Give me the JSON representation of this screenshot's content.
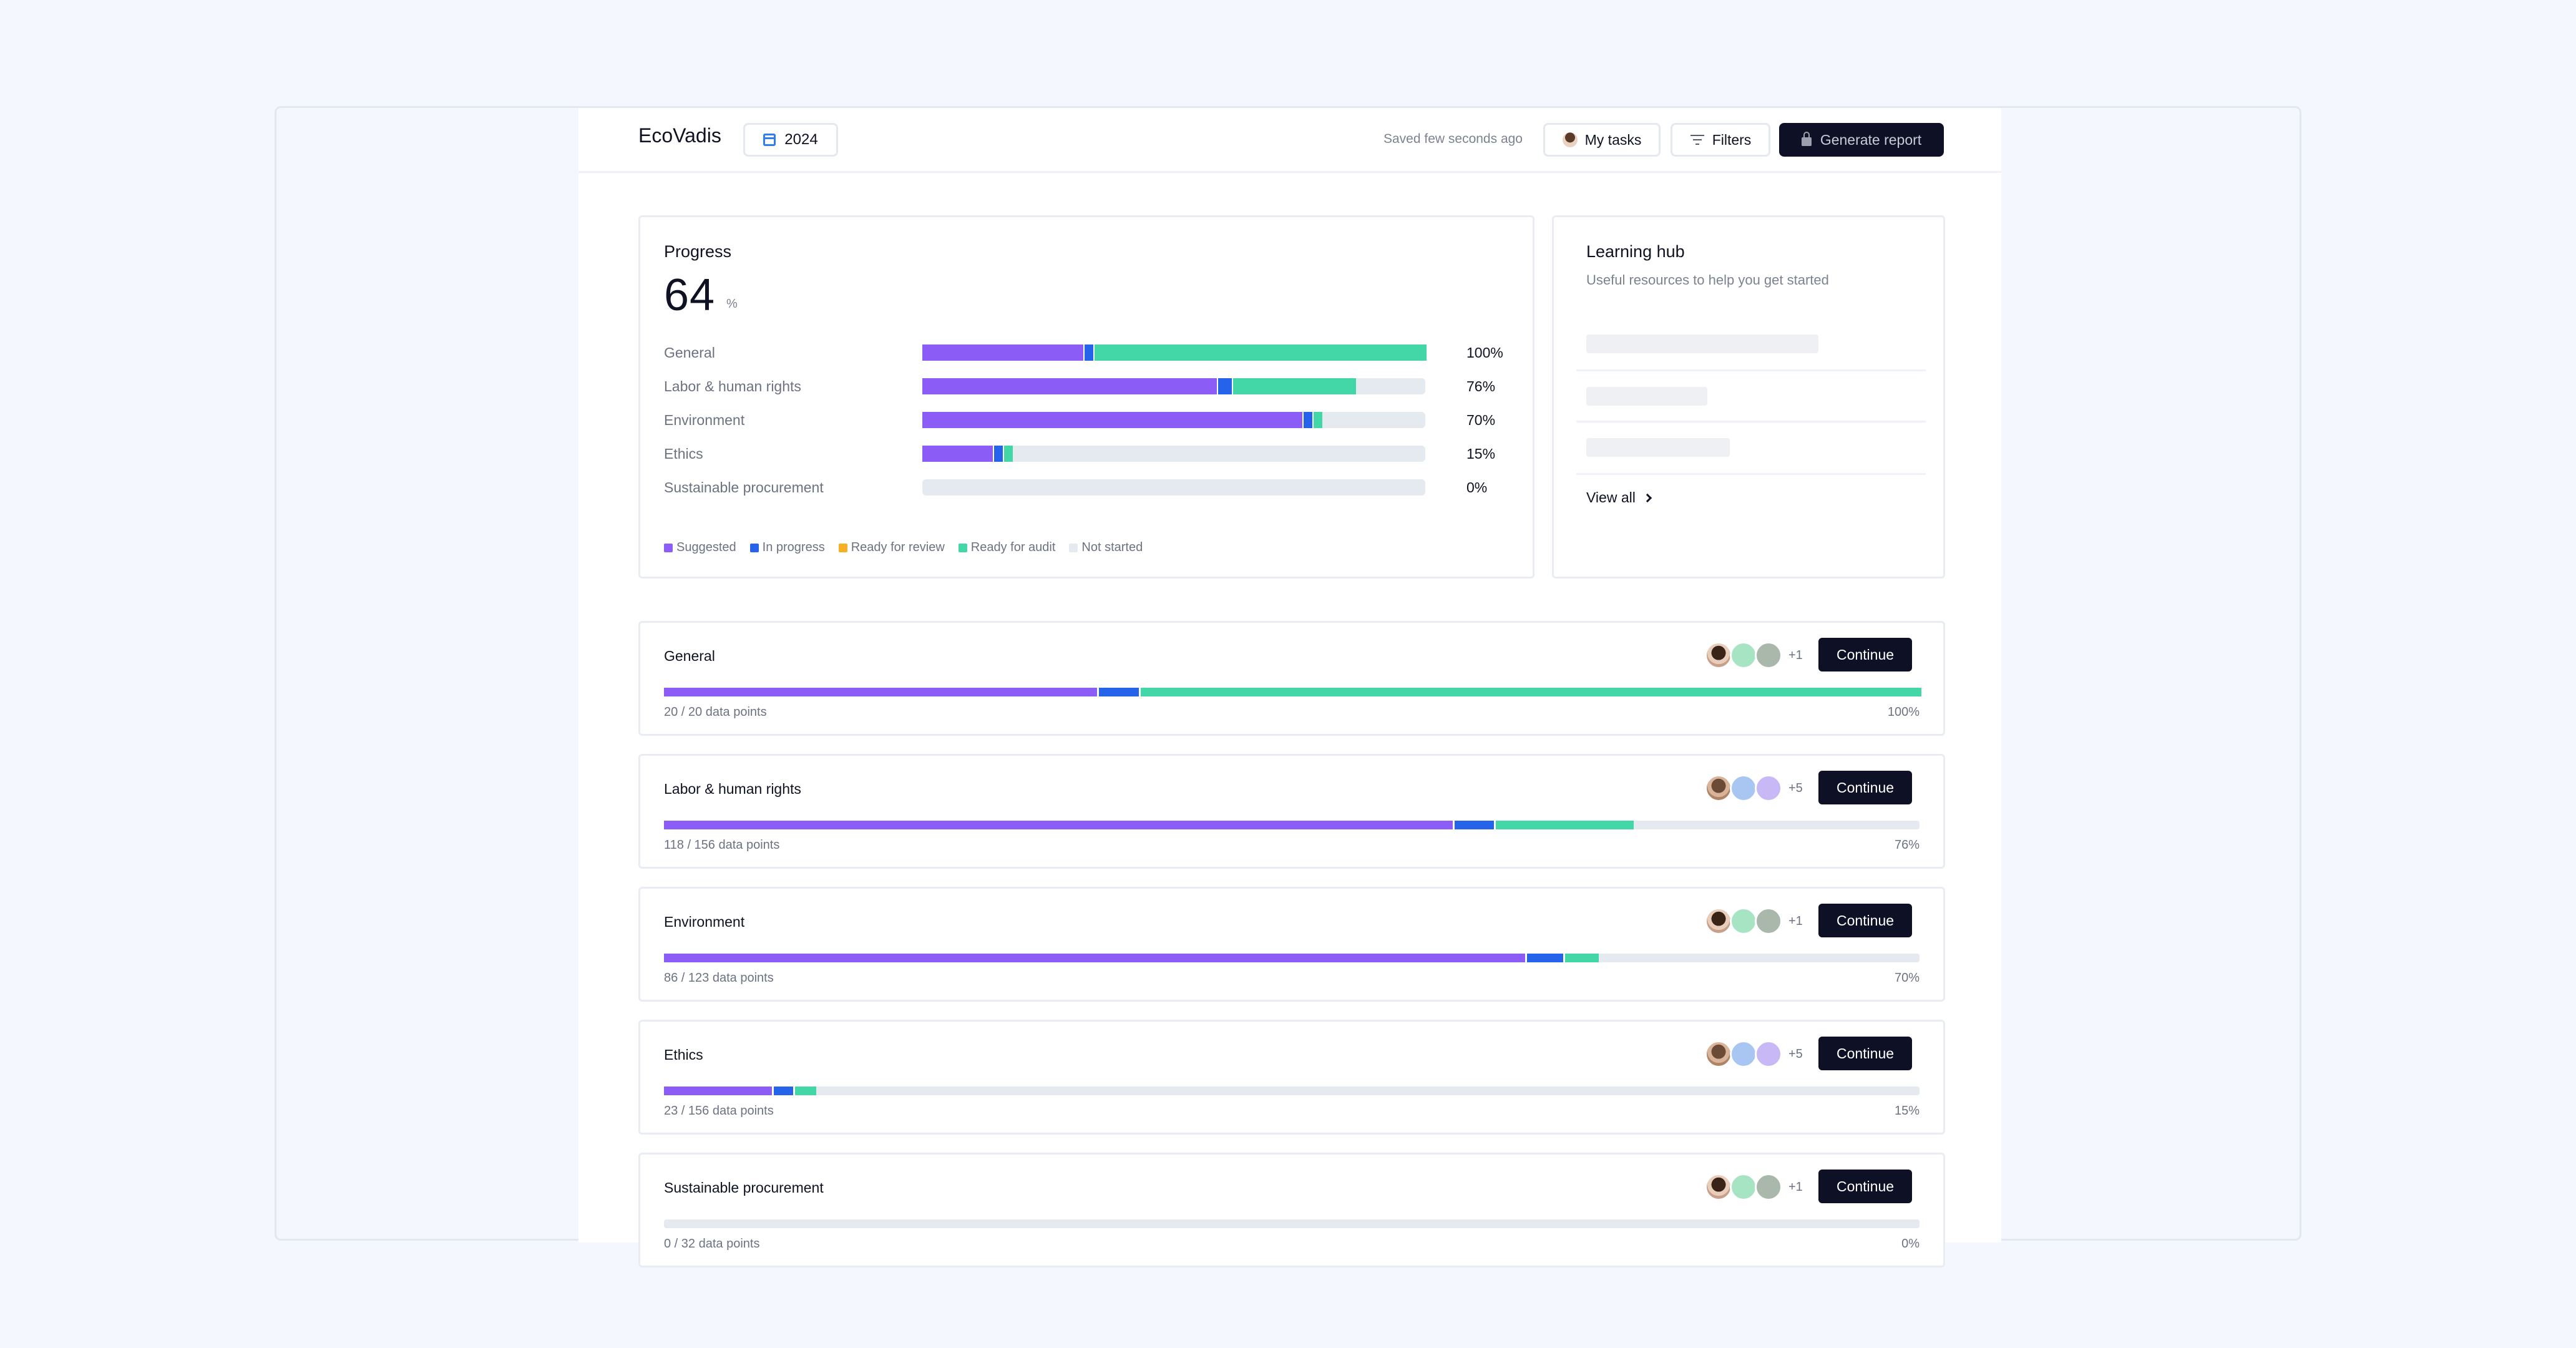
{
  "colors": {
    "suggested": "#8b5cf6",
    "in_progress": "#2563eb",
    "ready_for_review": "#f5b024",
    "ready_for_audit": "#43d7a8",
    "not_started": "#e5e9f0",
    "primary_dark": "#0e1026"
  },
  "header": {
    "app_title": "EcoVadis",
    "year": "2024",
    "saved_status": "Saved few seconds ago",
    "my_tasks_label": "My tasks",
    "filters_label": "Filters",
    "generate_label": "Generate report"
  },
  "progress": {
    "title": "Progress",
    "value": "64",
    "unit": "%",
    "rows": [
      {
        "label": "General",
        "pct": "100%",
        "segments": {
          "suggested": 0.32,
          "in_progress": 0.02,
          "ready_for_audit": 0.66
        }
      },
      {
        "label": "Labor & human rights",
        "pct": "76%",
        "segments": {
          "suggested": 0.585,
          "in_progress": 0.03,
          "ready_for_audit": 0.245
        }
      },
      {
        "label": "Environment",
        "pct": "70%",
        "segments": {
          "suggested": 0.755,
          "in_progress": 0.02,
          "ready_for_audit": 0.018
        }
      },
      {
        "label": "Ethics",
        "pct": "15%",
        "segments": {
          "suggested": 0.14,
          "in_progress": 0.02,
          "ready_for_audit": 0.018
        }
      },
      {
        "label": "Sustainable procurement",
        "pct": "0%",
        "segments": {
          "suggested": 0,
          "in_progress": 0,
          "ready_for_audit": 0
        }
      }
    ],
    "legend": [
      "Suggested",
      "In progress",
      "Ready for review",
      "Ready for audit",
      "Not started"
    ]
  },
  "learning_hub": {
    "title": "Learning hub",
    "subtitle": "Useful resources to help you get started",
    "view_all_label": "View all"
  },
  "sections": [
    {
      "title": "General",
      "avatars": [
        "photo1",
        "green",
        "gray"
      ],
      "extra": "+1",
      "continue_label": "Continue",
      "points": "20 / 20 data points",
      "pct": "100%",
      "segments": {
        "suggested": 0.345,
        "in_progress": 0.033,
        "ready_for_audit": 0.622
      }
    },
    {
      "title": "Labor & human rights",
      "avatars": [
        "photo2",
        "blue",
        "lilac"
      ],
      "extra": "+5",
      "continue_label": "Continue",
      "points": "118 / 156 data points",
      "pct": "76%",
      "segments": {
        "suggested": 0.628,
        "in_progress": 0.033,
        "ready_for_audit": 0.11
      }
    },
    {
      "title": "Environment",
      "avatars": [
        "photo1",
        "green",
        "gray"
      ],
      "extra": "+1",
      "continue_label": "Continue",
      "points": "86 / 123 data points",
      "pct": "70%",
      "segments": {
        "suggested": 0.686,
        "in_progress": 0.03,
        "ready_for_audit": 0.027
      }
    },
    {
      "title": "Ethics",
      "avatars": [
        "photo2",
        "blue",
        "lilac"
      ],
      "extra": "+5",
      "continue_label": "Continue",
      "points": "23 / 156 data points",
      "pct": "15%",
      "segments": {
        "suggested": 0.086,
        "in_progress": 0.017,
        "ready_for_audit": 0.017
      }
    },
    {
      "title": "Sustainable procurement",
      "avatars": [
        "photo1",
        "green",
        "gray"
      ],
      "extra": "+1",
      "continue_label": "Continue",
      "points": "0 / 32 data points",
      "pct": "0%",
      "segments": {
        "suggested": 0,
        "in_progress": 0,
        "ready_for_audit": 0
      }
    }
  ]
}
